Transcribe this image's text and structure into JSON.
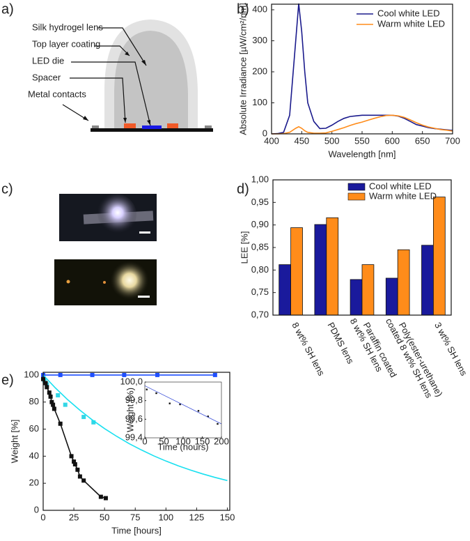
{
  "panels": {
    "a": {
      "label": "a)",
      "texts": [
        "Silk hydrogel lens",
        "Top layer coating",
        "LED die",
        "Spacer",
        "Metal contacts"
      ]
    },
    "c": {
      "label": "c)"
    }
  },
  "chart_data": [
    {
      "type": "line",
      "panel_label": "b)",
      "x_label": "Wavelength [nm]",
      "y_label": "Absolute Irradiance [µW/cm²/nm]",
      "x": [
        400,
        410,
        420,
        430,
        440,
        445,
        450,
        455,
        460,
        470,
        480,
        490,
        500,
        510,
        520,
        530,
        540,
        550,
        560,
        570,
        580,
        590,
        600,
        610,
        620,
        630,
        640,
        650,
        660,
        670,
        680,
        690,
        700
      ],
      "series": [
        {
          "name": "Cool white LED",
          "color": "#1a1a8c",
          "values": [
            0,
            1,
            5,
            60,
            300,
            420,
            330,
            200,
            100,
            40,
            17,
            18,
            28,
            40,
            50,
            56,
            58,
            60,
            60,
            60,
            60,
            60,
            60,
            57,
            50,
            40,
            30,
            25,
            20,
            17,
            15,
            13,
            11
          ]
        },
        {
          "name": "Warm white LED",
          "color": "#ff8c1a",
          "values": [
            0,
            0,
            1,
            5,
            18,
            23,
            18,
            10,
            5,
            2,
            2,
            3,
            8,
            14,
            20,
            27,
            33,
            38,
            44,
            50,
            55,
            59,
            60,
            58,
            53,
            45,
            36,
            28,
            22,
            18,
            14,
            12,
            9
          ]
        }
      ],
      "xlim": [
        400,
        700
      ],
      "xticks": [
        400,
        450,
        500,
        550,
        600,
        650,
        700
      ],
      "ylim": [
        0,
        418
      ],
      "yticks": [
        0,
        100,
        200,
        300,
        400
      ],
      "legend": "upper-right"
    },
    {
      "type": "bar",
      "panel_label": "d)",
      "y_label": "LEE [%]",
      "categories": [
        [
          "8 wt% SH lens"
        ],
        [
          "PDMS lens"
        ],
        [
          "Paraffin coated",
          "8 wt% SH lens"
        ],
        [
          "Poly(ester-urethane)",
          "coated 8 wt% SH lens"
        ],
        [
          "3 wt% SH lens"
        ]
      ],
      "series": [
        {
          "name": "Cool white LED",
          "color": "#1a1a9c",
          "values": [
            0.812,
            0.901,
            0.779,
            0.782,
            0.855
          ]
        },
        {
          "name": "Warm white LED",
          "color": "#ff8c1a",
          "values": [
            0.894,
            0.916,
            0.812,
            0.845,
            0.962
          ]
        }
      ],
      "ylim": [
        0.7,
        1.0
      ],
      "yticks": [
        {
          "value": 0.7,
          "label": "0,70"
        },
        {
          "value": 0.75,
          "label": "0,75"
        },
        {
          "value": 0.8,
          "label": "0,80"
        },
        {
          "value": 0.85,
          "label": "0,85"
        },
        {
          "value": 0.9,
          "label": "0,90"
        },
        {
          "value": 0.95,
          "label": "0,95"
        },
        {
          "value": 1.0,
          "label": "1,00"
        }
      ],
      "legend": "upper-center"
    },
    {
      "type": "scatter",
      "panel_label": "e)",
      "x_label": "Time [hours]",
      "y_label": "Weight [%]",
      "series": [
        {
          "color": "#1f4fff",
          "mode": "line+markers",
          "x": [
            0,
            14,
            40,
            66,
            93,
            140
          ],
          "values": [
            100,
            100,
            100,
            100,
            100,
            100
          ]
        },
        {
          "color": "#33d6e6",
          "mode": "markers",
          "x": [
            1,
            3,
            12,
            18,
            33,
            41
          ],
          "values": [
            96,
            93,
            85,
            78,
            69,
            65
          ]
        },
        {
          "color": "#19e0f0",
          "mode": "line",
          "x": [
            0,
            10,
            20,
            30,
            40,
            50,
            60,
            70,
            80,
            90,
            100,
            110,
            120,
            130,
            140,
            150
          ],
          "values": [
            100,
            90.4,
            81.7,
            73.9,
            66.8,
            60.4,
            54.6,
            49.3,
            44.6,
            40.3,
            36.4,
            32.9,
            29.8,
            26.9,
            24.3,
            22.0
          ]
        },
        {
          "color": "#111111",
          "mode": "line+markers",
          "x": [
            0,
            2,
            3,
            5,
            6,
            7,
            8,
            9,
            14,
            23,
            25,
            26,
            28,
            30,
            33,
            47,
            51
          ],
          "values": [
            97,
            94,
            91,
            87,
            84,
            80,
            78,
            75,
            64,
            40,
            36,
            34,
            30,
            25,
            22,
            10,
            9
          ]
        }
      ],
      "xlim": [
        0,
        152
      ],
      "xticks": [
        0,
        25,
        50,
        75,
        100,
        125,
        150
      ],
      "ylim": [
        0,
        102
      ],
      "yticks": [
        0,
        20,
        40,
        60,
        80,
        100
      ]
    },
    {
      "type": "scatter",
      "x_label": "Time (hours)",
      "y_label": "Weight (%)",
      "series": [
        {
          "color": "#111111",
          "mode": "markers",
          "x": [
            5,
            30,
            65,
            92,
            140,
            165,
            190
          ],
          "values": [
            99.92,
            99.88,
            99.77,
            99.76,
            99.69,
            99.63,
            99.55
          ]
        },
        {
          "color": "#3b4fd8",
          "mode": "line",
          "x": [
            0,
            200
          ],
          "values": [
            99.96,
            99.55
          ]
        }
      ],
      "xlim": [
        0,
        200
      ],
      "xticks": [
        0,
        50,
        100,
        150,
        200
      ],
      "ylim": [
        99.4,
        100.0
      ],
      "yticks": [
        {
          "value": 99.4,
          "label": "99,4"
        },
        {
          "value": 99.6,
          "label": "99,6"
        },
        {
          "value": 99.8,
          "label": "99,8"
        },
        {
          "value": 100.0,
          "label": "100,0"
        }
      ]
    }
  ]
}
